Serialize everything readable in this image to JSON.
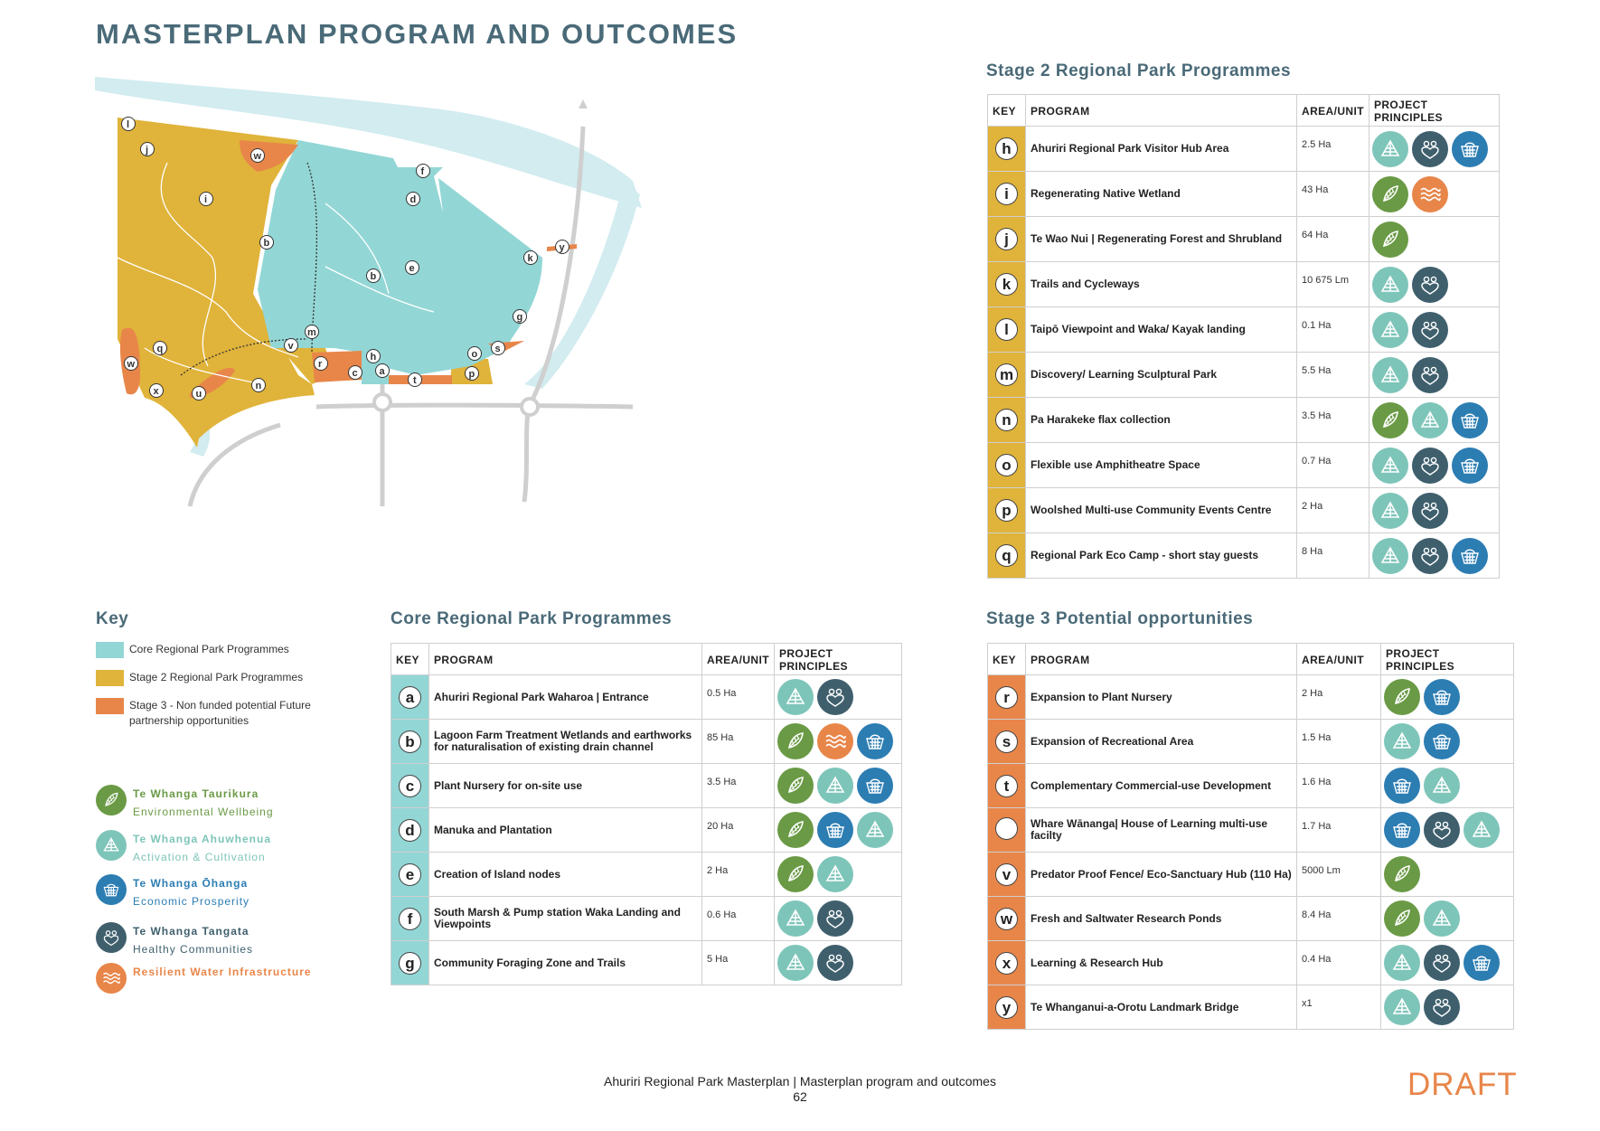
{
  "title": "MASTERPLAN PROGRAM AND OUTCOMES",
  "colors": {
    "core": "#93d6d6",
    "stage2": "#e0b33a",
    "stage3": "#e8864a",
    "environmental": "#6a9a45",
    "activation": "#7ec5b9",
    "economic": "#2c7db2",
    "healthy": "#3f5f6d",
    "water": "#e8864a",
    "river": "#d2ecf0",
    "title": "#4a6a78"
  },
  "map": {
    "labels": [
      "a",
      "b",
      "b",
      "c",
      "d",
      "e",
      "f",
      "g",
      "h",
      "i",
      "j",
      "k",
      "l",
      "m",
      "n",
      "o",
      "p",
      "q",
      "r",
      "s",
      "t",
      "u",
      "v",
      "w",
      "w",
      "x",
      "y"
    ]
  },
  "headers": {
    "key": "KEY",
    "program": "PROGRAM",
    "area": "AREA/UNIT",
    "principles": "PROJECT PRINCIPLES"
  },
  "stage2": {
    "title": "Stage 2 Regional Park Programmes",
    "rows": [
      {
        "key": "h",
        "program": "Ahuriri Regional Park Visitor Hub Area",
        "area": "2.5 Ha",
        "principles": [
          "activation",
          "healthy",
          "economic"
        ]
      },
      {
        "key": "i",
        "program": "Regenerating Native Wetland",
        "area": "43 Ha",
        "principles": [
          "environmental",
          "water"
        ]
      },
      {
        "key": "j",
        "program": "Te Wao Nui | Regenerating Forest and Shrubland",
        "area": "64 Ha",
        "principles": [
          "environmental"
        ]
      },
      {
        "key": "k",
        "program": "Trails and Cycleways",
        "area": "10 675 Lm",
        "principles": [
          "activation",
          "healthy"
        ]
      },
      {
        "key": "l",
        "program": "Taipō Viewpoint and Waka/ Kayak landing",
        "area": "0.1 Ha",
        "principles": [
          "activation",
          "healthy"
        ]
      },
      {
        "key": "m",
        "program": "Discovery/ Learning Sculptural Park",
        "area": "5.5 Ha",
        "principles": [
          "activation",
          "healthy"
        ]
      },
      {
        "key": "n",
        "program": "Pa Harakeke flax collection",
        "area": "3.5 Ha",
        "principles": [
          "environmental",
          "activation",
          "economic"
        ]
      },
      {
        "key": "o",
        "program": "Flexible use Amphitheatre Space",
        "area": "0.7 Ha",
        "principles": [
          "activation",
          "healthy",
          "economic"
        ]
      },
      {
        "key": "p",
        "program": "Woolshed Multi-use Community Events Centre",
        "area": "2 Ha",
        "principles": [
          "activation",
          "healthy"
        ]
      },
      {
        "key": "q",
        "program": "Regional Park Eco Camp - short stay guests",
        "area": "8 Ha",
        "principles": [
          "activation",
          "healthy",
          "economic"
        ]
      }
    ]
  },
  "core": {
    "title": "Core Regional Park Programmes",
    "rows": [
      {
        "key": "a",
        "program": "Ahuriri Regional Park Waharoa | Entrance",
        "area": "0.5 Ha",
        "principles": [
          "activation",
          "healthy"
        ]
      },
      {
        "key": "b",
        "program": "Lagoon Farm Treatment Wetlands and earthworks for naturalisation of existing drain channel",
        "area": "85 Ha",
        "principles": [
          "environmental",
          "water",
          "economic"
        ]
      },
      {
        "key": "c",
        "program": "Plant Nursery for on-site use",
        "area": "3.5 Ha",
        "principles": [
          "environmental",
          "activation",
          "economic"
        ]
      },
      {
        "key": "d",
        "program": "Manuka and Plantation",
        "area": "20 Ha",
        "principles": [
          "environmental",
          "economic",
          "activation"
        ]
      },
      {
        "key": "e",
        "program": "Creation of Island nodes",
        "area": "2 Ha",
        "principles": [
          "environmental",
          "activation"
        ]
      },
      {
        "key": "f",
        "program": "South Marsh & Pump station Waka Landing and Viewpoints",
        "area": "0.6 Ha",
        "principles": [
          "activation",
          "healthy"
        ]
      },
      {
        "key": "g",
        "program": "Community Foraging Zone and Trails",
        "area": "5 Ha",
        "principles": [
          "activation",
          "healthy"
        ]
      }
    ]
  },
  "stage3": {
    "title": "Stage 3 Potential opportunities",
    "rows": [
      {
        "key": "r",
        "program": "Expansion to Plant Nursery",
        "area": "2 Ha",
        "principles": [
          "environmental",
          "economic"
        ]
      },
      {
        "key": "s",
        "program": "Expansion of Recreational Area",
        "area": "1.5 Ha",
        "principles": [
          "activation",
          "economic"
        ]
      },
      {
        "key": "t",
        "program": "Complementary Commercial-use Development",
        "area": "1.6 Ha",
        "principles": [
          "economic",
          "activation"
        ]
      },
      {
        "key": "",
        "program": "Whare Wānanga| House of Learning multi-use facilty",
        "area": "1.7 Ha",
        "principles": [
          "economic",
          "healthy",
          "activation"
        ]
      },
      {
        "key": "v",
        "program": "Predator Proof Fence/ Eco-Sanctuary Hub (110 Ha)",
        "area": "5000 Lm",
        "principles": [
          "environmental"
        ]
      },
      {
        "key": "w",
        "program": "Fresh and Saltwater Research Ponds",
        "area": "8.4 Ha",
        "principles": [
          "environmental",
          "activation"
        ]
      },
      {
        "key": "x",
        "program": "Learning & Research Hub",
        "area": "0.4 Ha",
        "principles": [
          "activation",
          "healthy",
          "economic"
        ]
      },
      {
        "key": "y",
        "program": "Te Whanganui-a-Orotu Landmark Bridge",
        "area": "x1",
        "principles": [
          "activation",
          "healthy"
        ]
      }
    ]
  },
  "key": {
    "title": "Key",
    "items": [
      {
        "label": "Core Regional Park Programmes",
        "color": "#93d6d6"
      },
      {
        "label": "Stage 2 Regional Park Programmes",
        "color": "#e0b33a"
      },
      {
        "label": "Stage 3 - Non funded potential Future partnership opportunities",
        "color": "#e8864a"
      }
    ]
  },
  "legend": [
    {
      "icon": "environmental",
      "name": "Te Whanga Taurikura",
      "sub": "Environmental Wellbeing",
      "color": "#6a9a45"
    },
    {
      "icon": "activation",
      "name": "Te Whanga Ahuwhenua",
      "sub": "Activation & Cultivation",
      "color": "#7ec5b9"
    },
    {
      "icon": "economic",
      "name": "Te Whanga Ōhanga",
      "sub": "Economic Prosperity",
      "color": "#2c7db2"
    },
    {
      "icon": "healthy",
      "name": "Te Whanga Tangata",
      "sub": "Healthy Communities",
      "color": "#3f5f6d"
    },
    {
      "icon": "water",
      "name": "Resilient Water Infrastructure",
      "sub": "",
      "color": "#e8864a"
    }
  ],
  "footer": {
    "caption": "Ahuriri Regional Park Masterplan | Masterplan program and outcomes",
    "page": "62",
    "status": "DRAFT"
  }
}
